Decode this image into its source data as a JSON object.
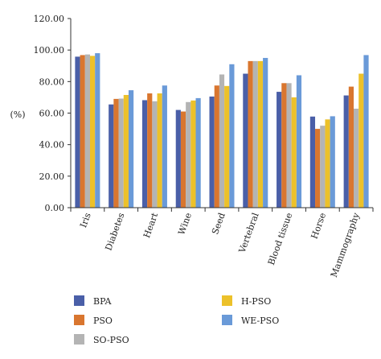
{
  "chart_data": {
    "type": "bar",
    "ylabel": "(%)",
    "ylim": [
      0,
      120
    ],
    "yticks": [
      "0.00",
      "20.00",
      "40.00",
      "60.00",
      "80.00",
      "100.00",
      "120.00"
    ],
    "grid": false,
    "legend_position": "bottom",
    "categories": [
      "Iris",
      "Diabetes",
      "Heart",
      "Wine",
      "Seed",
      "Vertebral",
      "Blood tissue",
      "Horse",
      "Mammography"
    ],
    "series": [
      {
        "name": "BPA",
        "color": "#4a5fa8",
        "values": [
          95.8,
          65.5,
          68.2,
          62.0,
          70.5,
          85.0,
          73.5,
          57.8,
          71.2
        ]
      },
      {
        "name": "PSO",
        "color": "#d9762f",
        "values": [
          96.8,
          69.0,
          72.5,
          61.0,
          77.5,
          93.0,
          79.0,
          50.0,
          76.8
        ]
      },
      {
        "name": "SO-PSO",
        "color": "#b4b4b4",
        "values": [
          97.2,
          69.2,
          67.5,
          67.0,
          84.5,
          93.0,
          79.0,
          52.0,
          62.8
        ]
      },
      {
        "name": "H-PSO",
        "color": "#ecc12a",
        "values": [
          96.3,
          71.5,
          72.5,
          68.0,
          77.2,
          93.0,
          70.0,
          56.0,
          85.0
        ]
      },
      {
        "name": "WE-PSO",
        "color": "#6a9ad8",
        "values": [
          98.0,
          74.5,
          77.5,
          69.5,
          91.0,
          95.0,
          84.0,
          58.0,
          96.8
        ]
      }
    ]
  }
}
